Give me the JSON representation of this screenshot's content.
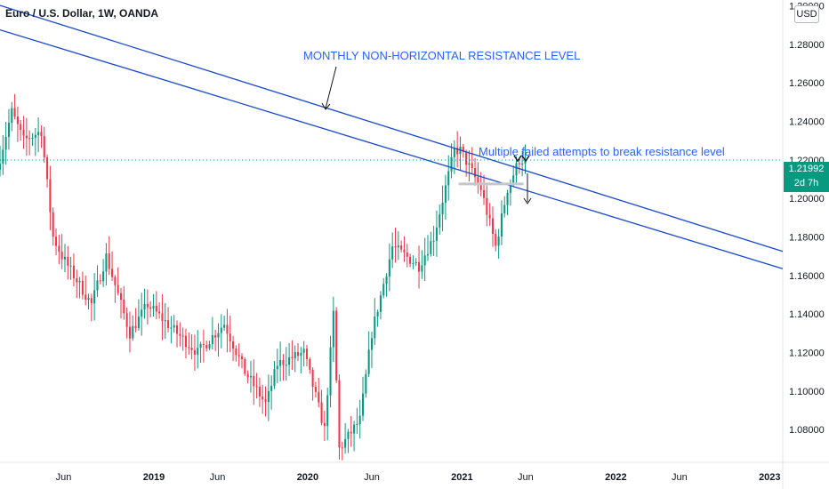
{
  "legend": "Euro / U.S. Dollar, 1W, OANDA",
  "currency_button": "USD",
  "price_label": {
    "price": "1.21992",
    "countdown": "2d 7h"
  },
  "annotations": {
    "resistance": "MONTHLY NON-HORIZONTAL RESISTANCE LEVEL",
    "attempts": "Multiple failed attempts to break resistance level"
  },
  "colors": {
    "up": "#089981",
    "down": "#f23645",
    "trendline": "#1848cc",
    "annotation": "#2962ff",
    "last_price": "#089981"
  },
  "chart_data": {
    "type": "candlestick",
    "title": "Euro / U.S. Dollar, 1W, OANDA",
    "y_ticks": [
      "1.30000",
      "1.28000",
      "1.26000",
      "1.24000",
      "1.22000",
      "1.20000",
      "1.18000",
      "1.16000",
      "1.14000",
      "1.12000",
      "1.10000",
      "1.08000"
    ],
    "x_ticks": [
      {
        "label": "Jun",
        "bold": false
      },
      {
        "label": "2019",
        "bold": true
      },
      {
        "label": "Jun",
        "bold": false
      },
      {
        "label": "2020",
        "bold": true
      },
      {
        "label": "Jun",
        "bold": false
      },
      {
        "label": "2021",
        "bold": true
      },
      {
        "label": "Jun",
        "bold": false
      },
      {
        "label": "2022",
        "bold": true
      },
      {
        "label": "Jun",
        "bold": false
      },
      {
        "label": "2023",
        "bold": true
      }
    ],
    "ylim": [
      1.063,
      1.303
    ],
    "xlim": [
      "2018-01-01",
      "2023-02-01"
    ],
    "last_price": 1.21992,
    "trendlines": [
      {
        "name": "resistance-upper",
        "points": [
          [
            "2018-01-01",
            1.3002
          ],
          [
            "2023-02-01",
            1.1725
          ]
        ]
      },
      {
        "name": "resistance-lower",
        "points": [
          [
            "2018-01-01",
            1.2875
          ],
          [
            "2023-02-01",
            1.1635
          ]
        ]
      }
    ],
    "support_zone": {
      "from": "2020-12-24",
      "to": "2021-05-27",
      "price": 1.2075
    },
    "series_anchors": [
      [
        "2018-01-01",
        1.215
      ],
      [
        "2018-02-05",
        1.245
      ],
      [
        "2018-03-05",
        1.23
      ],
      [
        "2018-04-16",
        1.235
      ],
      [
        "2018-05-14",
        1.18
      ],
      [
        "2018-06-04",
        1.17
      ],
      [
        "2018-08-13",
        1.145
      ],
      [
        "2018-09-17",
        1.17
      ],
      [
        "2018-11-12",
        1.13
      ],
      [
        "2018-12-24",
        1.145
      ],
      [
        "2019-03-04",
        1.13
      ],
      [
        "2019-04-22",
        1.12
      ],
      [
        "2019-06-24",
        1.135
      ],
      [
        "2019-08-12",
        1.11
      ],
      [
        "2019-10-01",
        1.093
      ],
      [
        "2019-10-28",
        1.114
      ],
      [
        "2019-12-30",
        1.12
      ],
      [
        "2020-02-17",
        1.08
      ],
      [
        "2020-03-09",
        1.14
      ],
      [
        "2020-03-23",
        1.07
      ],
      [
        "2020-05-11",
        1.085
      ],
      [
        "2020-06-08",
        1.13
      ],
      [
        "2020-07-27",
        1.175
      ],
      [
        "2020-09-28",
        1.165
      ],
      [
        "2020-11-02",
        1.18
      ],
      [
        "2020-12-21",
        1.225
      ],
      [
        "2021-01-04",
        1.225
      ],
      [
        "2021-02-22",
        1.205
      ],
      [
        "2021-03-29",
        1.175
      ],
      [
        "2021-04-26",
        1.205
      ],
      [
        "2021-05-24",
        1.22
      ],
      [
        "2021-05-31",
        1.2199
      ]
    ]
  }
}
